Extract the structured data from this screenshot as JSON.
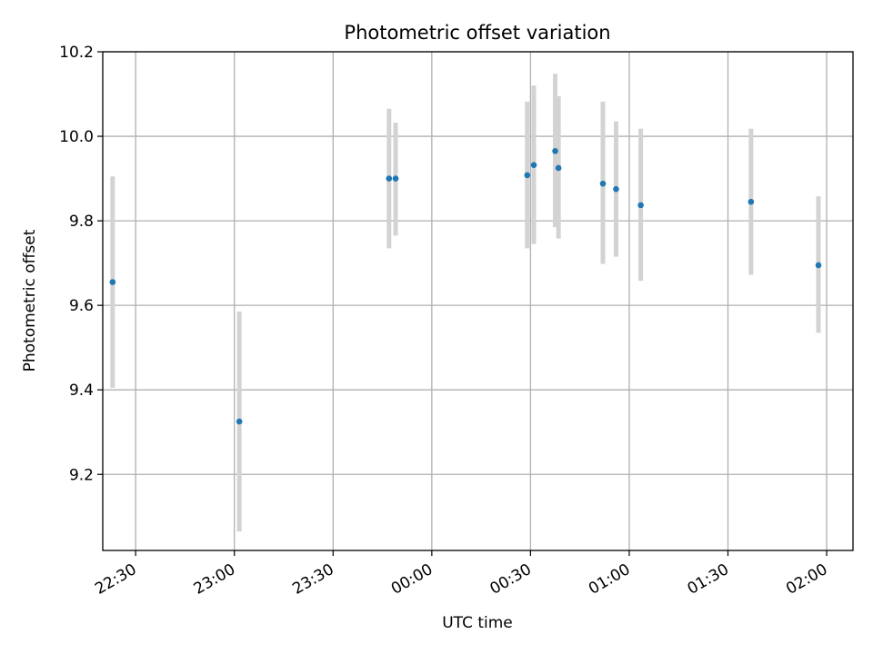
{
  "chart_data": {
    "type": "scatter",
    "title": "Photometric offset variation",
    "xlabel": "UTC time",
    "ylabel": "Photometric offset",
    "x_axis": "time",
    "xlim": [
      "22:20:00",
      "02:08:00"
    ],
    "ylim": [
      9.02,
      10.2
    ],
    "x_ticks": [
      "22:30",
      "23:00",
      "23:30",
      "00:00",
      "00:30",
      "01:00",
      "01:30",
      "02:00"
    ],
    "y_ticks": [
      9.2,
      9.4,
      9.6,
      9.8,
      10.0,
      10.2
    ],
    "y_tick_labels": [
      "9.2",
      "9.4",
      "9.6",
      "9.8",
      "10.0",
      "10.2"
    ],
    "grid": true,
    "colors": {
      "point": "#1f77b4",
      "errorbar": "#d3d3d3",
      "grid": "#b0b0b0"
    },
    "series": [
      {
        "points": [
          {
            "x": "22:23:00",
            "y": 9.655,
            "yerr_low": 9.405,
            "yerr_high": 9.905
          },
          {
            "x": "23:01:30",
            "y": 9.325,
            "yerr_low": 9.065,
            "yerr_high": 9.585
          },
          {
            "x": "23:47:00",
            "y": 9.9,
            "yerr_low": 9.735,
            "yerr_high": 10.065
          },
          {
            "x": "23:49:00",
            "y": 9.9,
            "yerr_low": 9.765,
            "yerr_high": 10.032
          },
          {
            "x": "00:29:00",
            "y": 9.908,
            "yerr_low": 9.735,
            "yerr_high": 10.082
          },
          {
            "x": "00:31:00",
            "y": 9.932,
            "yerr_low": 9.745,
            "yerr_high": 10.12
          },
          {
            "x": "00:37:30",
            "y": 9.965,
            "yerr_low": 9.785,
            "yerr_high": 10.148
          },
          {
            "x": "00:38:30",
            "y": 9.925,
            "yerr_low": 9.758,
            "yerr_high": 10.095
          },
          {
            "x": "00:52:00",
            "y": 9.888,
            "yerr_low": 9.698,
            "yerr_high": 10.082
          },
          {
            "x": "00:56:00",
            "y": 9.875,
            "yerr_low": 9.715,
            "yerr_high": 10.035
          },
          {
            "x": "01:03:30",
            "y": 9.837,
            "yerr_low": 9.658,
            "yerr_high": 10.018
          },
          {
            "x": "01:37:00",
            "y": 9.845,
            "yerr_low": 9.672,
            "yerr_high": 10.018
          },
          {
            "x": "01:57:30",
            "y": 9.695,
            "yerr_low": 9.535,
            "yerr_high": 9.858
          }
        ]
      }
    ]
  }
}
